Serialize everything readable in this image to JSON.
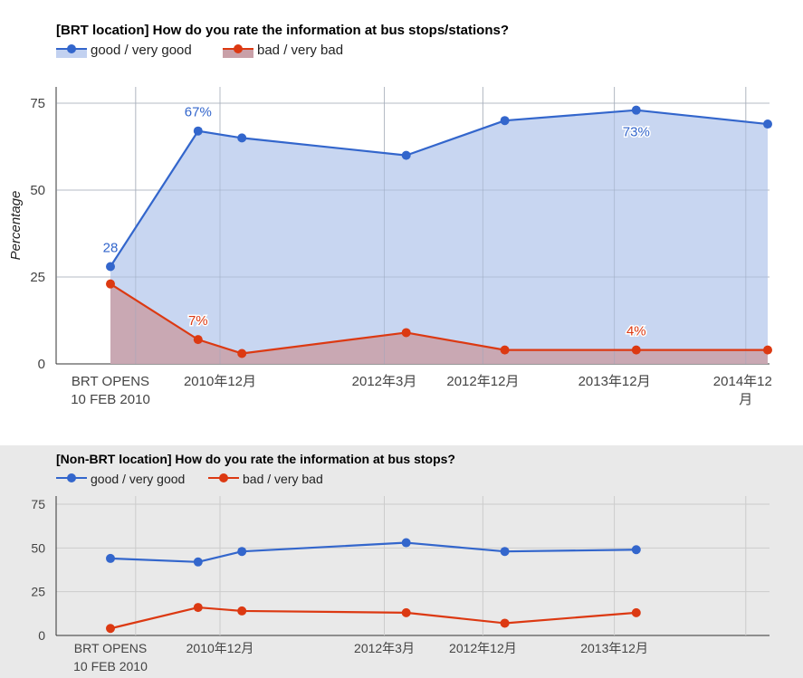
{
  "chart_data": [
    {
      "type": "area",
      "title": "[BRT location] How do you rate the information at bus stops/stations?",
      "ylabel": "Percentage",
      "xlabel": "",
      "ylim": [
        0,
        80
      ],
      "yticks": [
        0,
        25,
        50,
        75
      ],
      "grid": true,
      "legend_position": "top-left",
      "x_tick_labels": [
        {
          "label": "BRT OPENS\n10 FEB 2010",
          "x": 0
        },
        {
          "label": "2010年12月",
          "x": 10
        },
        {
          "label": "2012年3月",
          "x": 25
        },
        {
          "label": "2012年12月",
          "x": 34
        },
        {
          "label": "2013年12月",
          "x": 46
        },
        {
          "label": "2014年12\n月",
          "x": 58
        }
      ],
      "gridlines_x": [
        2.3,
        10,
        25,
        34,
        46,
        58
      ],
      "series": [
        {
          "name": "good / very good",
          "color": "#3366cc",
          "fill": "#c2d1f0",
          "x": [
            0,
            8,
            12,
            27,
            36,
            48,
            60
          ],
          "values": [
            28,
            67,
            65,
            60,
            70,
            73,
            69
          ],
          "annotations": [
            {
              "index": 0,
              "text": "28",
              "position": "above"
            },
            {
              "index": 1,
              "text": "67%",
              "position": "above"
            },
            {
              "index": 5,
              "text": "73%",
              "position": "below"
            }
          ]
        },
        {
          "name": "bad / very bad",
          "color": "#dc3912",
          "fill": "#c9a0a8",
          "x": [
            0,
            8,
            12,
            27,
            36,
            48,
            60
          ],
          "values": [
            23,
            7,
            3,
            9,
            4,
            4,
            4
          ],
          "annotations": [
            {
              "index": 1,
              "text": "7%",
              "position": "above"
            },
            {
              "index": 5,
              "text": "4%",
              "position": "above"
            }
          ]
        }
      ]
    },
    {
      "type": "line",
      "title": "[Non-BRT location] How do you rate the information at bus stops?",
      "ylabel": "",
      "xlabel": "",
      "ylim": [
        0,
        80
      ],
      "yticks": [
        0,
        25,
        50,
        75
      ],
      "grid": true,
      "legend_position": "top-left",
      "x_tick_labels": [
        {
          "label": "BRT OPENS\n10 FEB 2010",
          "x": 0
        },
        {
          "label": "2010年12月",
          "x": 10
        },
        {
          "label": "2012年3月",
          "x": 25
        },
        {
          "label": "2012年12月",
          "x": 34
        },
        {
          "label": "2013年12月",
          "x": 46
        }
      ],
      "gridlines_x": [
        2.3,
        10,
        25,
        34,
        46,
        58
      ],
      "series": [
        {
          "name": "good / very good",
          "color": "#3366cc",
          "x": [
            0,
            8,
            12,
            27,
            36,
            48
          ],
          "values": [
            44,
            42,
            48,
            53,
            48,
            49
          ]
        },
        {
          "name": "bad / very bad",
          "color": "#dc3912",
          "x": [
            0,
            8,
            12,
            27,
            36,
            48
          ],
          "values": [
            4,
            16,
            14,
            13,
            7,
            13
          ]
        }
      ]
    }
  ]
}
